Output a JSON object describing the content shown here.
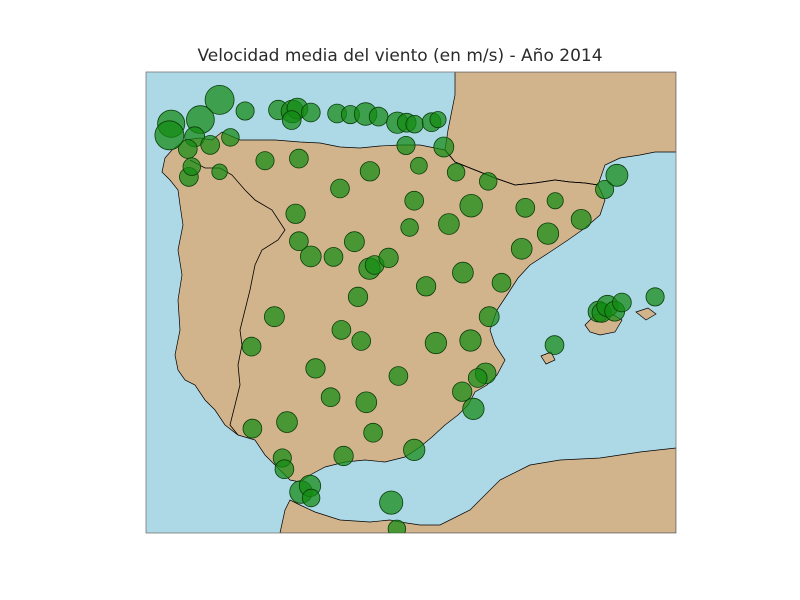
{
  "map": {
    "title": "Velocidad media del viento (en m/s) - Año 2014",
    "colors": {
      "sea": "#add8e6",
      "land": "#d2b48c",
      "border": "#000000",
      "station_fill": "#138a13",
      "station_stroke": "#0a3d0a"
    },
    "marker_note": "circle size proportional to mean wind speed",
    "projection_bounds": {
      "lon": [
        -9.9,
        4.8
      ],
      "lat": [
        35.2,
        44.3
      ]
    },
    "stations": [
      {
        "lon": -7.86,
        "lat": 43.75,
        "wind": 3.6
      },
      {
        "lon": -8.39,
        "lat": 43.36,
        "wind": 3.4
      },
      {
        "lon": -8.55,
        "lat": 43.02,
        "wind": 2.2
      },
      {
        "lon": -8.74,
        "lat": 42.78,
        "wind": 2.0
      },
      {
        "lon": -9.2,
        "lat": 43.28,
        "wind": 3.3
      },
      {
        "lon": -9.25,
        "lat": 43.05,
        "wind": 3.6
      },
      {
        "lon": -8.71,
        "lat": 42.23,
        "wind": 2.0
      },
      {
        "lon": -8.63,
        "lat": 42.43,
        "wind": 1.8
      },
      {
        "lon": -8.12,
        "lat": 42.86,
        "wind": 2.0
      },
      {
        "lon": -7.56,
        "lat": 43.01,
        "wind": 1.8
      },
      {
        "lon": -7.86,
        "lat": 42.33,
        "wind": 1.5
      },
      {
        "lon": -7.15,
        "lat": 43.53,
        "wind": 1.9
      },
      {
        "lon": -6.23,
        "lat": 43.55,
        "wind": 2.1
      },
      {
        "lon": -5.84,
        "lat": 43.52,
        "wind": 2.6
      },
      {
        "lon": -5.7,
        "lat": 43.58,
        "wind": 2.3
      },
      {
        "lon": -5.33,
        "lat": 43.5,
        "wind": 2.0
      },
      {
        "lon": -4.6,
        "lat": 43.48,
        "wind": 2.0
      },
      {
        "lon": -4.23,
        "lat": 43.46,
        "wind": 1.9
      },
      {
        "lon": -3.81,
        "lat": 43.47,
        "wind": 2.6
      },
      {
        "lon": -3.45,
        "lat": 43.42,
        "wind": 2.0
      },
      {
        "lon": -2.93,
        "lat": 43.3,
        "wind": 2.4
      },
      {
        "lon": -2.67,
        "lat": 43.3,
        "wind": 2.0
      },
      {
        "lon": -2.45,
        "lat": 43.27,
        "wind": 1.8
      },
      {
        "lon": -1.98,
        "lat": 43.31,
        "wind": 2.0
      },
      {
        "lon": -1.8,
        "lat": 43.36,
        "wind": 1.6
      },
      {
        "lon": -5.86,
        "lat": 43.35,
        "wind": 2.0
      },
      {
        "lon": -5.66,
        "lat": 42.59,
        "wind": 2.0
      },
      {
        "lon": -6.6,
        "lat": 42.55,
        "wind": 1.9
      },
      {
        "lon": -4.52,
        "lat": 42.0,
        "wind": 2.0
      },
      {
        "lon": -3.69,
        "lat": 42.34,
        "wind": 2.1
      },
      {
        "lon": -2.69,
        "lat": 42.85,
        "wind": 1.9
      },
      {
        "lon": -2.33,
        "lat": 42.45,
        "wind": 1.7
      },
      {
        "lon": -1.64,
        "lat": 42.82,
        "wind": 2.2
      },
      {
        "lon": -1.3,
        "lat": 42.32,
        "wind": 1.8
      },
      {
        "lon": -0.88,
        "lat": 41.66,
        "wind": 2.6
      },
      {
        "lon": -0.41,
        "lat": 42.14,
        "wind": 1.8
      },
      {
        "lon": 0.62,
        "lat": 41.62,
        "wind": 2.0
      },
      {
        "lon": 1.25,
        "lat": 41.11,
        "wind": 2.4
      },
      {
        "lon": 2.17,
        "lat": 41.39,
        "wind": 2.2
      },
      {
        "lon": 2.82,
        "lat": 41.98,
        "wind": 1.9
      },
      {
        "lon": 3.16,
        "lat": 42.26,
        "wind": 2.5
      },
      {
        "lon": 1.45,
        "lat": 41.76,
        "wind": 1.6
      },
      {
        "lon": 0.52,
        "lat": 40.81,
        "wind": 2.3
      },
      {
        "lon": -0.04,
        "lat": 40.14,
        "wind": 2.0
      },
      {
        "lon": -0.38,
        "lat": 39.47,
        "wind": 2.2
      },
      {
        "lon": -0.48,
        "lat": 38.35,
        "wind": 2.3
      },
      {
        "lon": -0.7,
        "lat": 38.26,
        "wind": 2.0
      },
      {
        "lon": -0.82,
        "lat": 37.65,
        "wind": 2.4
      },
      {
        "lon": -1.13,
        "lat": 37.99,
        "wind": 2.1
      },
      {
        "lon": -1.86,
        "lat": 38.95,
        "wind": 2.4
      },
      {
        "lon": -2.46,
        "lat": 36.84,
        "wind": 2.4
      },
      {
        "lon": -3.6,
        "lat": 37.18,
        "wind": 2.0
      },
      {
        "lon": -3.79,
        "lat": 37.78,
        "wind": 2.3
      },
      {
        "lon": -4.78,
        "lat": 37.88,
        "wind": 2.0
      },
      {
        "lon": -4.42,
        "lat": 36.72,
        "wind": 2.1
      },
      {
        "lon": -5.99,
        "lat": 37.39,
        "wind": 2.3
      },
      {
        "lon": -6.95,
        "lat": 37.26,
        "wind": 2.0
      },
      {
        "lon": -6.12,
        "lat": 36.68,
        "wind": 1.9
      },
      {
        "lon": -6.06,
        "lat": 36.46,
        "wind": 2.0
      },
      {
        "lon": -5.6,
        "lat": 36.01,
        "wind": 2.6
      },
      {
        "lon": -5.35,
        "lat": 36.13,
        "wind": 2.4
      },
      {
        "lon": -5.32,
        "lat": 35.89,
        "wind": 1.8
      },
      {
        "lon": -2.94,
        "lat": 35.28,
        "wind": 1.8
      },
      {
        "lon": -3.1,
        "lat": 35.8,
        "wind": 2.7
      },
      {
        "lon": -6.97,
        "lat": 38.88,
        "wind": 2.0
      },
      {
        "lon": -6.34,
        "lat": 39.47,
        "wind": 2.2
      },
      {
        "lon": -5.33,
        "lat": 40.66,
        "wind": 2.3
      },
      {
        "lon": -4.7,
        "lat": 40.65,
        "wind": 2.0
      },
      {
        "lon": -4.12,
        "lat": 40.95,
        "wind": 2.2
      },
      {
        "lon": -3.7,
        "lat": 40.42,
        "wind": 2.4
      },
      {
        "lon": -3.56,
        "lat": 40.49,
        "wind": 2.0
      },
      {
        "lon": -3.17,
        "lat": 40.63,
        "wind": 2.1
      },
      {
        "lon": -2.13,
        "lat": 40.07,
        "wind": 2.1
      },
      {
        "lon": -1.11,
        "lat": 40.34,
        "wind": 2.3
      },
      {
        "lon": -3.93,
        "lat": 38.99,
        "wind": 2.0
      },
      {
        "lon": -4.02,
        "lat": 39.86,
        "wind": 2.1
      },
      {
        "lon": -2.46,
        "lat": 41.76,
        "wind": 2.0
      },
      {
        "lon": -2.59,
        "lat": 41.23,
        "wind": 1.8
      },
      {
        "lon": -5.75,
        "lat": 41.5,
        "wind": 2.1
      },
      {
        "lon": -5.66,
        "lat": 40.96,
        "wind": 2.0
      },
      {
        "lon": 2.65,
        "lat": 39.57,
        "wind": 2.3
      },
      {
        "lon": 2.74,
        "lat": 39.55,
        "wind": 2.1
      },
      {
        "lon": 2.9,
        "lat": 39.68,
        "wind": 2.4
      },
      {
        "lon": 3.1,
        "lat": 39.58,
        "wind": 2.2
      },
      {
        "lon": 3.3,
        "lat": 39.75,
        "wind": 2.0
      },
      {
        "lon": 4.22,
        "lat": 39.86,
        "wind": 1.9
      },
      {
        "lon": 1.43,
        "lat": 38.91,
        "wind": 2.0
      },
      {
        "lon": -4.48,
        "lat": 39.21,
        "wind": 2.0
      },
      {
        "lon": -5.2,
        "lat": 38.45,
        "wind": 2.1
      },
      {
        "lon": -2.9,
        "lat": 38.3,
        "wind": 2.0
      },
      {
        "lon": -0.9,
        "lat": 39.0,
        "wind": 2.4
      },
      {
        "lon": -1.5,
        "lat": 41.3,
        "wind": 2.3
      }
    ]
  }
}
